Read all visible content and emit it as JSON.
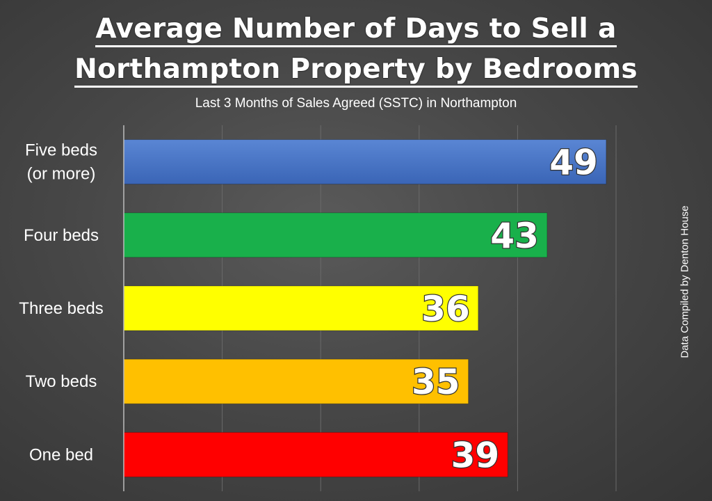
{
  "title_line1": "Average Number of Days to Sell a",
  "title_line2": "Northampton Property by Bedrooms",
  "subtitle": "Last 3 Months of Sales Agreed (SSTC) in Northampton",
  "side_note": "Data Compiled by Denton House",
  "chart_data": {
    "type": "bar",
    "orientation": "horizontal",
    "title": "Average Number of Days to Sell a Northampton Property by Bedrooms",
    "subtitle": "Last 3 Months of Sales Agreed (SSTC) in Northampton",
    "categories": [
      [
        "Five beds",
        "(or more)"
      ],
      [
        "Four beds"
      ],
      [
        "Three beds"
      ],
      [
        "Two beds"
      ],
      [
        "One bed"
      ]
    ],
    "values": [
      49,
      43,
      36,
      35,
      39
    ],
    "colors": [
      "#4472c4",
      "#19b04b",
      "#ffff00",
      "#ffc000",
      "#ff0000"
    ],
    "xlim": [
      0,
      50
    ],
    "vertical_gridlines": true,
    "data_labels": "inside-end",
    "legend": "none"
  }
}
